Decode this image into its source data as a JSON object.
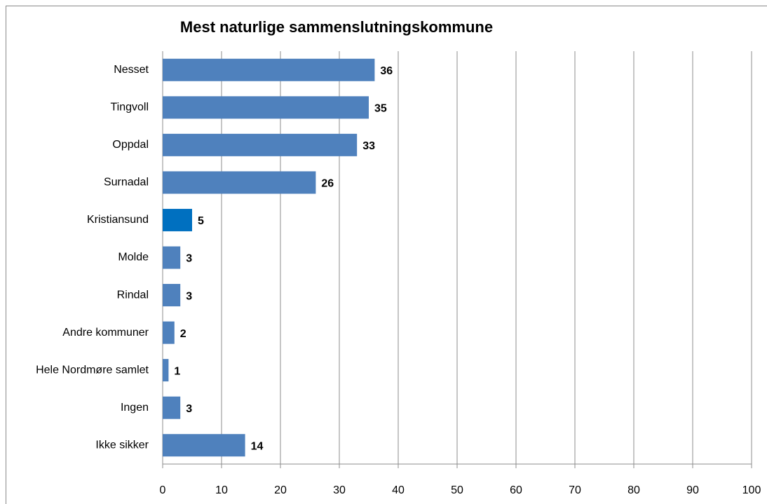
{
  "chart_data": {
    "type": "bar",
    "orientation": "horizontal",
    "title": "Mest naturlige sammenslutningskommune",
    "categories": [
      "Nesset",
      "Tingvoll",
      "Oppdal",
      "Surnadal",
      "Kristiansund",
      "Molde",
      "Rindal",
      "Andre kommuner",
      "Hele Nordmøre samlet",
      "Ingen",
      "Ikke sikker"
    ],
    "values": [
      36,
      35,
      33,
      26,
      5,
      3,
      3,
      2,
      1,
      3,
      14
    ],
    "colors": [
      "#4f81bd",
      "#4f81bd",
      "#4f81bd",
      "#4f81bd",
      "#0070c0",
      "#4f81bd",
      "#4f81bd",
      "#4f81bd",
      "#4f81bd",
      "#4f81bd",
      "#4f81bd"
    ],
    "xlim": [
      0,
      100
    ],
    "xticks": [
      0,
      10,
      20,
      30,
      40,
      50,
      60,
      70,
      80,
      90,
      100
    ],
    "grid": true
  }
}
